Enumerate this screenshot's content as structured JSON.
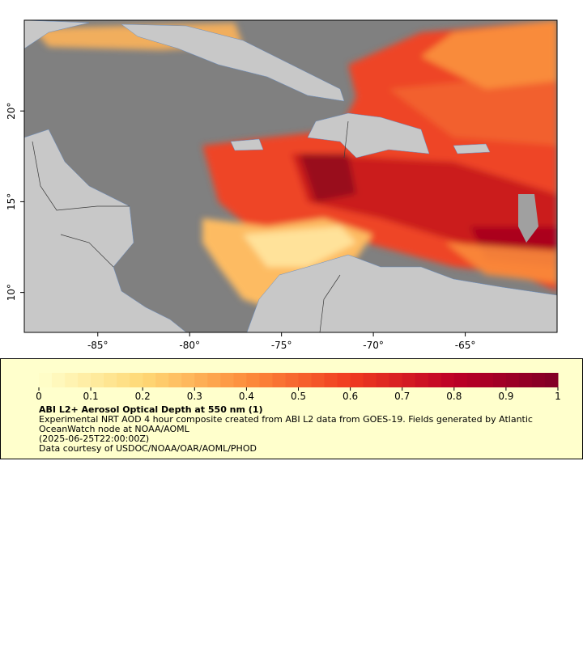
{
  "map": {
    "xlim": [
      -89,
      -60
    ],
    "ylim": [
      7.8,
      25
    ],
    "xticks": [
      {
        "value": -85,
        "label": "-85°"
      },
      {
        "value": -80,
        "label": "-80°"
      },
      {
        "value": -75,
        "label": "-75°"
      },
      {
        "value": -70,
        "label": "-70°"
      },
      {
        "value": -65,
        "label": "-65°"
      }
    ],
    "yticks": [
      {
        "value": 10,
        "label": "10°"
      },
      {
        "value": 15,
        "label": "15°"
      },
      {
        "value": 20,
        "label": "20°"
      }
    ]
  },
  "colorbar": {
    "range": [
      0,
      1
    ],
    "ticks": [
      0,
      0.1,
      0.2,
      0.3,
      0.4,
      0.5,
      0.6,
      0.7,
      0.8,
      0.9,
      1
    ]
  },
  "legend": {
    "title": "ABI L2+ Aerosol Optical Depth at 550 nm (1)",
    "description": "Experimental NRT AOD 4 hour composite created from ABI L2 data from GOES-19. Fields generated by Atlantic OceanWatch node at NOAA/AOML",
    "time": "(2025-06-25T22:00:00Z)",
    "credit": "Data courtesy of USDOC/NOAA/OAR/AOML/PHOD"
  }
}
